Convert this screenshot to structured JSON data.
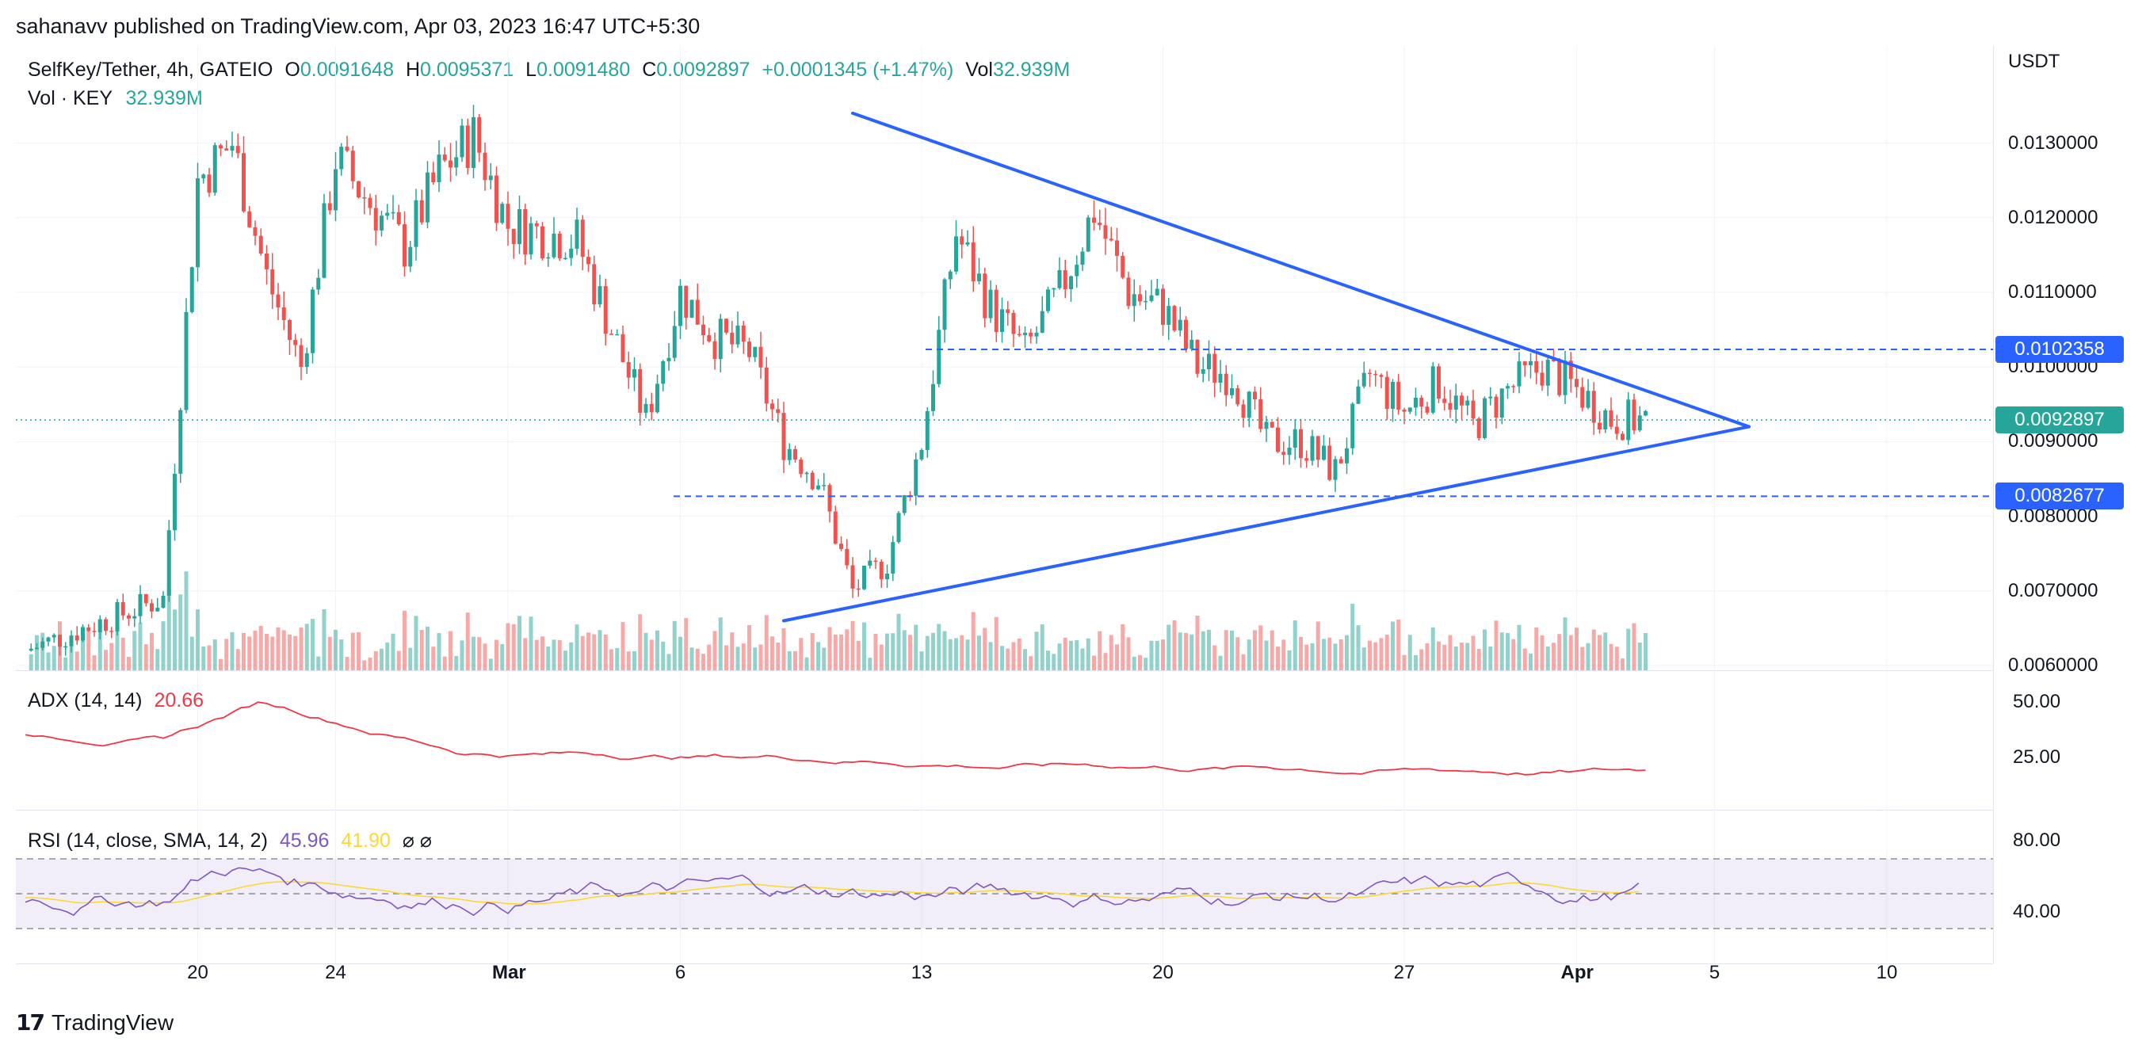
{
  "header": {
    "published": "sahanavv published on TradingView.com, Apr 03, 2023 16:47 UTC+5:30"
  },
  "legend": {
    "symbol": "SelfKey/Tether, 4h, GATEIO",
    "o_label": "O",
    "o_value": "0.0091648",
    "h_label": "H",
    "h_value": "0.0095371",
    "l_label": "L",
    "l_value": "0.0091480",
    "c_label": "C",
    "c_value": "0.0092897",
    "change": "+0.0001345 (+1.47%)",
    "vol_label": "Vol",
    "vol_value": "32.939M",
    "vol_line_label": "Vol · KEY",
    "vol_line_value": "32.939M"
  },
  "price_axis": {
    "currency": "USDT",
    "ticks": [
      "0.0130000",
      "0.0120000",
      "0.0110000",
      "0.0100000",
      "0.0090000",
      "0.0080000",
      "0.0070000",
      "0.0060000"
    ],
    "labels": [
      {
        "text": "0.0102358",
        "color": "#2962ff"
      },
      {
        "text": "0.0092897",
        "color": "#26a69a"
      },
      {
        "text": "0.0082677",
        "color": "#2962ff"
      }
    ]
  },
  "time_axis": {
    "ticks": [
      "20",
      "24",
      "Mar",
      "6",
      "13",
      "20",
      "27",
      "Apr",
      "5",
      "10"
    ]
  },
  "adx": {
    "title": "ADX (14, 14)",
    "value": "20.66",
    "ticks": [
      "50.00",
      "25.00"
    ]
  },
  "rsi": {
    "title": "RSI (14, close, SMA, 14, 2)",
    "value": "45.96",
    "sma_value": "41.90",
    "extras": "⌀ ⌀",
    "ticks": [
      "80.00",
      "40.00"
    ]
  },
  "footer": {
    "brand": "TradingView"
  },
  "colors": {
    "up": "#26a69a",
    "down": "#ef5350",
    "trend": "#2962ff",
    "adx": "#f23645",
    "rsi": "#7e57c2",
    "rsi_sma": "#fdd835"
  },
  "chart_data": {
    "type": "candlestick",
    "title": "SelfKey/Tether, 4h, GATEIO",
    "ylabel": "USDT",
    "ylim": [
      0.0059,
      0.0139
    ],
    "x_ticks": [
      "20",
      "24",
      "Mar",
      "6",
      "13",
      "20",
      "27",
      "Apr",
      "5",
      "10"
    ],
    "price_series": [
      {
        "date": "Feb 15",
        "close": 0.0062
      },
      {
        "date": "Feb 19",
        "close": 0.0069
      },
      {
        "date": "Feb 20",
        "close": 0.0125
      },
      {
        "date": "Feb 21",
        "close": 0.013
      },
      {
        "date": "Feb 22",
        "close": 0.0112
      },
      {
        "date": "Feb 23",
        "close": 0.01
      },
      {
        "date": "Feb 24",
        "close": 0.0128
      },
      {
        "date": "Feb 26",
        "close": 0.0116
      },
      {
        "date": "Feb 27",
        "close": 0.0126
      },
      {
        "date": "Feb 28",
        "close": 0.0131
      },
      {
        "date": "Mar 1",
        "close": 0.0119
      },
      {
        "date": "Mar 3",
        "close": 0.0117
      },
      {
        "date": "Mar 5",
        "close": 0.0093
      },
      {
        "date": "Mar 6",
        "close": 0.011
      },
      {
        "date": "Mar 7",
        "close": 0.0104
      },
      {
        "date": "Mar 8",
        "close": 0.0102
      },
      {
        "date": "Mar 9",
        "close": 0.009
      },
      {
        "date": "Mar 10",
        "close": 0.0085
      },
      {
        "date": "Mar 11",
        "close": 0.007
      },
      {
        "date": "Mar 12",
        "close": 0.0074
      },
      {
        "date": "Mar 13",
        "close": 0.009
      },
      {
        "date": "Mar 14",
        "close": 0.0118
      },
      {
        "date": "Mar 15",
        "close": 0.0108
      },
      {
        "date": "Mar 16",
        "close": 0.0102
      },
      {
        "date": "Mar 17",
        "close": 0.011
      },
      {
        "date": "Mar 18",
        "close": 0.0121
      },
      {
        "date": "Mar 19",
        "close": 0.011
      },
      {
        "date": "Mar 20",
        "close": 0.0108
      },
      {
        "date": "Mar 21",
        "close": 0.01
      },
      {
        "date": "Mar 22",
        "close": 0.0099
      },
      {
        "date": "Mar 23",
        "close": 0.009
      },
      {
        "date": "Mar 24",
        "close": 0.009
      },
      {
        "date": "Mar 25",
        "close": 0.0086
      },
      {
        "date": "Mar 26",
        "close": 0.0099
      },
      {
        "date": "Mar 27",
        "close": 0.0094
      },
      {
        "date": "Mar 28",
        "close": 0.0098
      },
      {
        "date": "Mar 29",
        "close": 0.0092
      },
      {
        "date": "Mar 30",
        "close": 0.0097
      },
      {
        "date": "Mar 31",
        "close": 0.01
      },
      {
        "date": "Apr 1",
        "close": 0.0097
      },
      {
        "date": "Apr 2",
        "close": 0.0093
      },
      {
        "date": "Apr 3",
        "close": 0.0092897
      }
    ],
    "horizontal_levels": [
      0.0102358,
      0.0082677
    ],
    "current_price": 0.0092897,
    "trendlines": [
      {
        "name": "upper",
        "from": {
          "date": "Mar 11",
          "value": 0.0134
        },
        "to": {
          "date": "Apr 6",
          "value": 0.0092
        }
      },
      {
        "name": "lower",
        "from": {
          "date": "Mar 9",
          "value": 0.0066
        },
        "to": {
          "date": "Apr 6",
          "value": 0.0092
        }
      }
    ],
    "adx_range": [
      0,
      60
    ],
    "rsi_range": [
      20,
      100
    ],
    "rsi_bands": [
      30,
      50,
      70
    ]
  }
}
